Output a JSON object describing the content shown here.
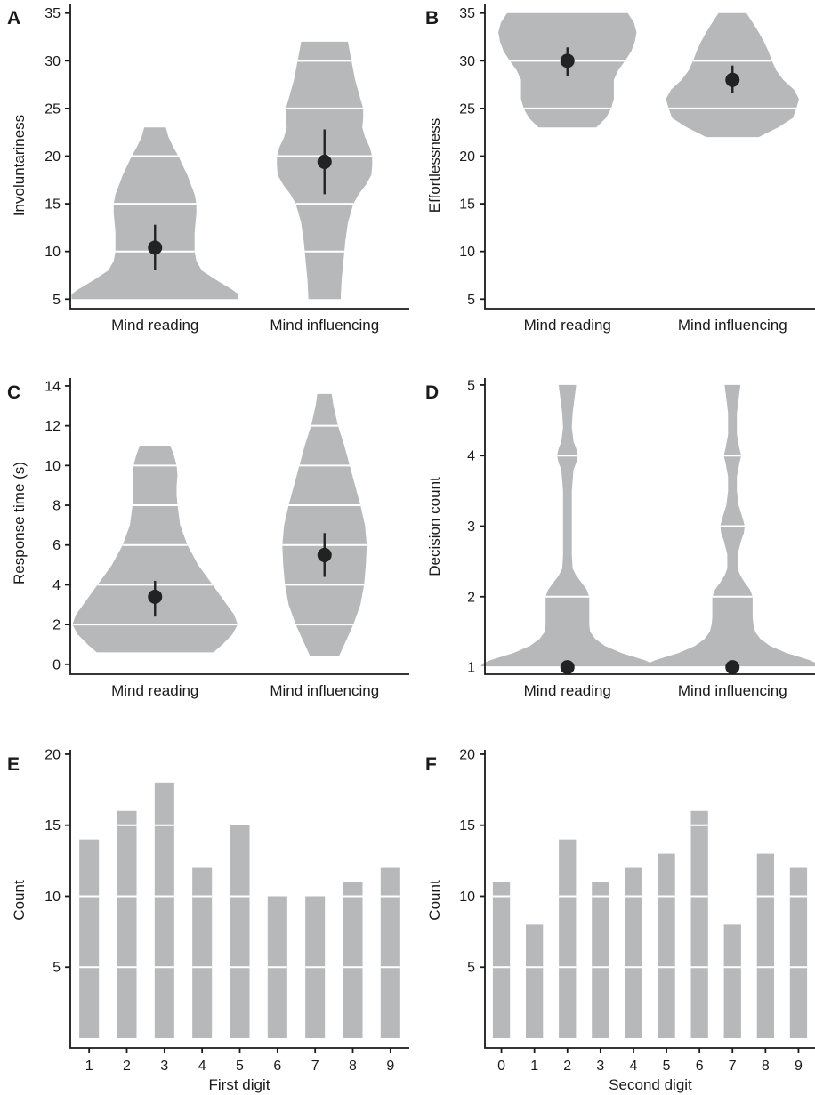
{
  "chart_data": [
    {
      "panel": "A",
      "type": "violin",
      "ylabel": "Involuntariness",
      "yticks": [
        5,
        10,
        15,
        20,
        25,
        30,
        35
      ],
      "ylim": [
        4,
        36
      ],
      "categories": [
        "Mind reading",
        "Mind influencing"
      ],
      "mean": [
        10.4,
        19.4
      ],
      "err_low": [
        8.1,
        16.0
      ],
      "err_high": [
        12.8,
        22.8
      ],
      "white_lines": [
        [
          10,
          15,
          20
        ],
        [
          10,
          15,
          20,
          25,
          30
        ]
      ],
      "density": [
        [
          [
            5,
            0.93
          ],
          [
            5.5,
            0.93
          ],
          [
            6,
            0.86
          ],
          [
            7,
            0.68
          ],
          [
            8,
            0.52
          ],
          [
            9,
            0.46
          ],
          [
            10,
            0.44
          ],
          [
            11,
            0.44
          ],
          [
            12,
            0.44
          ],
          [
            13,
            0.45
          ],
          [
            14,
            0.46
          ],
          [
            15,
            0.46
          ],
          [
            16,
            0.44
          ],
          [
            17,
            0.4
          ],
          [
            18,
            0.36
          ],
          [
            19,
            0.31
          ],
          [
            20,
            0.26
          ],
          [
            21,
            0.2
          ],
          [
            22,
            0.15
          ],
          [
            23,
            0.12
          ]
        ],
        [
          [
            5,
            0.18
          ],
          [
            7,
            0.19
          ],
          [
            9,
            0.21
          ],
          [
            11,
            0.23
          ],
          [
            13,
            0.26
          ],
          [
            15,
            0.32
          ],
          [
            16,
            0.38
          ],
          [
            17,
            0.46
          ],
          [
            18,
            0.52
          ],
          [
            19,
            0.53
          ],
          [
            20,
            0.53
          ],
          [
            21,
            0.5
          ],
          [
            22,
            0.45
          ],
          [
            23,
            0.42
          ],
          [
            24,
            0.43
          ],
          [
            25,
            0.43
          ],
          [
            26,
            0.4
          ],
          [
            28,
            0.34
          ],
          [
            30,
            0.3
          ],
          [
            31,
            0.28
          ],
          [
            32,
            0.26
          ]
        ]
      ]
    },
    {
      "panel": "B",
      "type": "violin",
      "ylabel": "Effortlessness",
      "yticks": [
        5,
        10,
        15,
        20,
        25,
        30,
        35
      ],
      "ylim": [
        4,
        36
      ],
      "categories": [
        "Mind reading",
        "Mind influencing"
      ],
      "mean": [
        30.0,
        28.0
      ],
      "err_low": [
        28.4,
        26.6
      ],
      "err_high": [
        31.4,
        29.5
      ],
      "white_lines": [
        [
          25,
          30
        ],
        [
          25,
          30
        ]
      ],
      "density": [
        [
          [
            23,
            0.33
          ],
          [
            24,
            0.44
          ],
          [
            25,
            0.5
          ],
          [
            26,
            0.53
          ],
          [
            27,
            0.53
          ],
          [
            28,
            0.53
          ],
          [
            29,
            0.58
          ],
          [
            30,
            0.66
          ],
          [
            31,
            0.73
          ],
          [
            32,
            0.77
          ],
          [
            33,
            0.79
          ],
          [
            34,
            0.76
          ],
          [
            35,
            0.69
          ]
        ],
        [
          [
            22,
            0.3
          ],
          [
            23,
            0.52
          ],
          [
            24,
            0.69
          ],
          [
            25,
            0.73
          ],
          [
            26,
            0.76
          ],
          [
            27,
            0.7
          ],
          [
            28,
            0.58
          ],
          [
            29,
            0.5
          ],
          [
            30,
            0.45
          ],
          [
            31,
            0.41
          ],
          [
            32,
            0.36
          ],
          [
            33,
            0.3
          ],
          [
            34,
            0.23
          ],
          [
            35,
            0.16
          ]
        ]
      ]
    },
    {
      "panel": "C",
      "type": "violin",
      "ylabel": "Response time (s)",
      "yticks": [
        0,
        2,
        4,
        6,
        8,
        10,
        12,
        14
      ],
      "ylim": [
        -0.5,
        14.4
      ],
      "categories": [
        "Mind reading",
        "Mind influencing"
      ],
      "mean": [
        3.4,
        5.5
      ],
      "err_low": [
        2.4,
        4.4
      ],
      "err_high": [
        4.2,
        6.6
      ],
      "white_lines": [
        [
          2,
          4,
          6,
          8,
          10
        ],
        [
          2,
          4,
          6,
          8,
          10,
          12
        ]
      ],
      "density": [
        [
          [
            0.6,
            0.65
          ],
          [
            1,
            0.75
          ],
          [
            1.5,
            0.86
          ],
          [
            2,
            0.92
          ],
          [
            2.5,
            0.88
          ],
          [
            3,
            0.8
          ],
          [
            4,
            0.64
          ],
          [
            5,
            0.48
          ],
          [
            6,
            0.36
          ],
          [
            7,
            0.28
          ],
          [
            8,
            0.25
          ],
          [
            8.5,
            0.24
          ],
          [
            9,
            0.24
          ],
          [
            9.5,
            0.25
          ],
          [
            10,
            0.24
          ],
          [
            10.5,
            0.21
          ],
          [
            11,
            0.17
          ]
        ],
        [
          [
            0.4,
            0.16
          ],
          [
            1,
            0.22
          ],
          [
            2,
            0.32
          ],
          [
            3,
            0.4
          ],
          [
            4,
            0.44
          ],
          [
            5,
            0.46
          ],
          [
            6,
            0.47
          ],
          [
            7,
            0.45
          ],
          [
            8,
            0.4
          ],
          [
            9,
            0.34
          ],
          [
            10,
            0.28
          ],
          [
            11,
            0.22
          ],
          [
            12,
            0.15
          ],
          [
            13,
            0.1
          ],
          [
            13.6,
            0.08
          ]
        ]
      ]
    },
    {
      "panel": "D",
      "type": "violin",
      "ylabel": "Decision count",
      "yticks": [
        1,
        2,
        3,
        4,
        5
      ],
      "ylim": [
        0.9,
        5.1
      ],
      "categories": [
        "Mind reading",
        "Mind influencing"
      ],
      "mean": [
        1.0,
        1.0
      ],
      "white_lines": [
        [
          1,
          2,
          4
        ],
        [
          1,
          2,
          3,
          4
        ]
      ],
      "density": [
        [
          [
            1,
            1.0
          ],
          [
            1.05,
            0.97
          ],
          [
            1.1,
            0.88
          ],
          [
            1.2,
            0.62
          ],
          [
            1.3,
            0.43
          ],
          [
            1.4,
            0.32
          ],
          [
            1.5,
            0.26
          ],
          [
            1.6,
            0.25
          ],
          [
            1.7,
            0.25
          ],
          [
            1.8,
            0.25
          ],
          [
            1.9,
            0.25
          ],
          [
            2,
            0.25
          ],
          [
            2.1,
            0.22
          ],
          [
            2.2,
            0.16
          ],
          [
            2.3,
            0.1
          ],
          [
            2.4,
            0.06
          ],
          [
            2.6,
            0.05
          ],
          [
            2.8,
            0.05
          ],
          [
            3,
            0.05
          ],
          [
            3.2,
            0.05
          ],
          [
            3.5,
            0.05
          ],
          [
            3.8,
            0.07
          ],
          [
            3.9,
            0.1
          ],
          [
            4,
            0.12
          ],
          [
            4.1,
            0.1
          ],
          [
            4.2,
            0.07
          ],
          [
            4.4,
            0.05
          ],
          [
            4.6,
            0.06
          ],
          [
            4.8,
            0.08
          ],
          [
            5,
            0.1
          ]
        ],
        [
          [
            1,
            1.0
          ],
          [
            1.05,
            0.97
          ],
          [
            1.1,
            0.88
          ],
          [
            1.2,
            0.62
          ],
          [
            1.3,
            0.43
          ],
          [
            1.4,
            0.32
          ],
          [
            1.5,
            0.26
          ],
          [
            1.6,
            0.24
          ],
          [
            1.7,
            0.23
          ],
          [
            1.8,
            0.23
          ],
          [
            1.9,
            0.23
          ],
          [
            2,
            0.23
          ],
          [
            2.1,
            0.2
          ],
          [
            2.2,
            0.14
          ],
          [
            2.3,
            0.09
          ],
          [
            2.4,
            0.06
          ],
          [
            2.6,
            0.06
          ],
          [
            2.8,
            0.1
          ],
          [
            2.9,
            0.13
          ],
          [
            3,
            0.14
          ],
          [
            3.1,
            0.12
          ],
          [
            3.3,
            0.07
          ],
          [
            3.5,
            0.05
          ],
          [
            3.7,
            0.05
          ],
          [
            3.9,
            0.08
          ],
          [
            4,
            0.1
          ],
          [
            4.1,
            0.08
          ],
          [
            4.3,
            0.05
          ],
          [
            4.6,
            0.05
          ],
          [
            4.8,
            0.07
          ],
          [
            5,
            0.09
          ]
        ]
      ]
    },
    {
      "panel": "E",
      "type": "bar",
      "xlabel": "First digit",
      "ylabel": "Count",
      "yticks": [
        5,
        10,
        15,
        20
      ],
      "ylim": [
        0,
        20.3
      ],
      "categories": [
        "1",
        "2",
        "3",
        "4",
        "5",
        "6",
        "7",
        "8",
        "9"
      ],
      "values": [
        14,
        16,
        18,
        12,
        15,
        10,
        10,
        11,
        12
      ]
    },
    {
      "panel": "F",
      "type": "bar",
      "xlabel": "Second digit",
      "ylabel": "Count",
      "yticks": [
        5,
        10,
        15,
        20
      ],
      "ylim": [
        0,
        20.3
      ],
      "categories": [
        "0",
        "1",
        "2",
        "3",
        "4",
        "5",
        "6",
        "7",
        "8",
        "9"
      ],
      "values": [
        11,
        8,
        14,
        11,
        12,
        13,
        16,
        8,
        13,
        12
      ]
    }
  ]
}
